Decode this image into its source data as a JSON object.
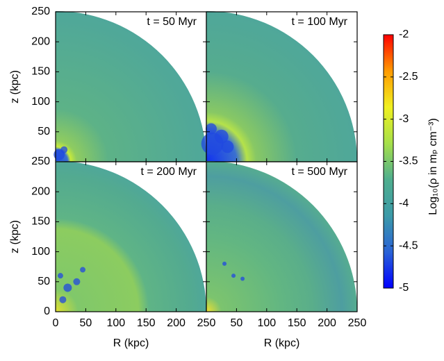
{
  "chart_data": {
    "type": "heatmap",
    "panels": [
      {
        "label": "t = 50 Myr"
      },
      {
        "label": "t = 100 Myr"
      },
      {
        "label": "t = 200 Myr"
      },
      {
        "label": "t = 500 Myr"
      }
    ],
    "xlabel": "R (kpc)",
    "ylabel": "z (kpc)",
    "xlim": [
      0,
      250
    ],
    "ylim": [
      0,
      250
    ],
    "xticks": [
      0,
      50,
      100,
      150,
      200,
      250
    ],
    "yticks": [
      0,
      50,
      100,
      150,
      200,
      250
    ],
    "colorbar": {
      "label": "Log₁₀(ρ in mₚ cm⁻³)",
      "lim": [
        -5,
        -2
      ],
      "ticks": [
        -2,
        -2.5,
        -3,
        -3.5,
        -4,
        -4.5,
        -5
      ],
      "colors": [
        "#0000ff",
        "#2a63d6",
        "#3c9aa8",
        "#4fae8e",
        "#a6e04a",
        "#f0f020",
        "#ff9a00",
        "#ff0000"
      ]
    }
  }
}
